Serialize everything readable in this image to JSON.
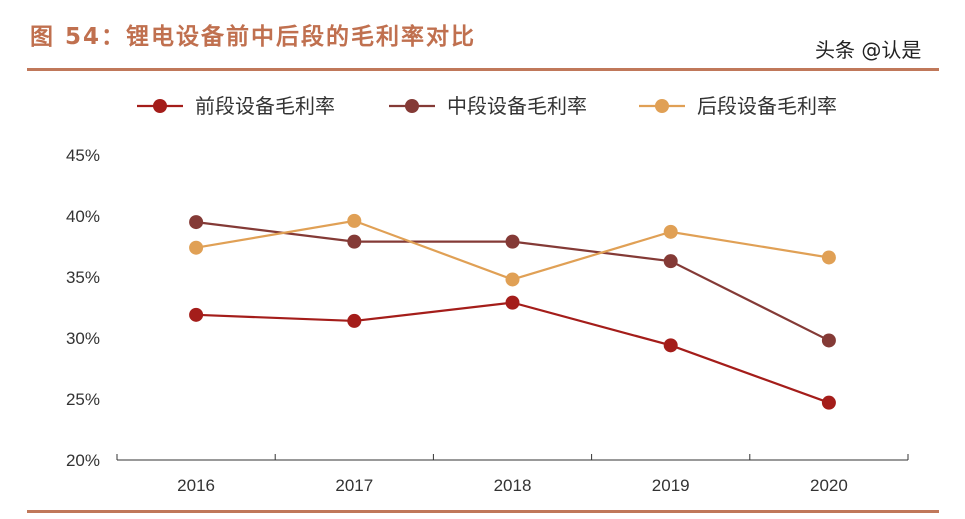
{
  "title": "图 54：锂电设备前中后段的毛利率对比",
  "watermark": "头条 @认是",
  "chart_data": {
    "type": "line",
    "title": "",
    "xlabel": "",
    "ylabel": "",
    "categories": [
      "2016",
      "2017",
      "2018",
      "2019",
      "2020"
    ],
    "ylim": [
      0.2,
      0.45
    ],
    "yticks": [
      "20%",
      "25%",
      "30%",
      "35%",
      "40%",
      "45%"
    ],
    "grid": false,
    "legend": "top",
    "series": [
      {
        "name": "前段设备毛利率",
        "color": "#a41d1a",
        "values": [
          0.319,
          0.314,
          0.329,
          0.294,
          0.247
        ]
      },
      {
        "name": "中段设备毛利率",
        "color": "#843a36",
        "values": [
          0.395,
          0.379,
          0.379,
          0.363,
          0.298
        ]
      },
      {
        "name": "后段设备毛利率",
        "color": "#e0a055",
        "values": [
          0.374,
          0.396,
          0.348,
          0.387,
          0.366
        ]
      }
    ]
  }
}
